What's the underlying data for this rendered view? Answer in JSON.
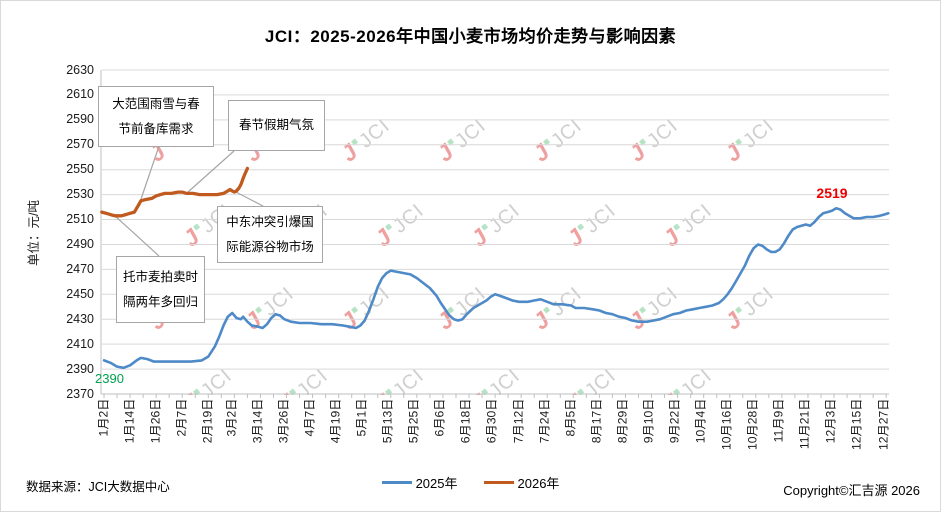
{
  "watermark_text": "JCI",
  "footer": {
    "source": "数据来源：JCI大数据中心",
    "copyright": "Copyright©汇吉源 2026"
  },
  "annotations": [
    {
      "text": "大范围雨雪与春\n节前备库需求"
    },
    {
      "text": "春节假期气氛"
    },
    {
      "text": "中东冲突引爆国\n际能源谷物市场"
    },
    {
      "text": "托市麦拍卖时\n隔两年多回归"
    }
  ],
  "chart_data": {
    "type": "line",
    "title": "JCI：2025-2026年中国小麦市场均价走势与影响因素",
    "xlabel": "",
    "ylabel": "单位：元/吨",
    "ylim": [
      2370,
      2630
    ],
    "ytick_step": 20,
    "y_tick_labels": [
      2370,
      2390,
      2410,
      2430,
      2450,
      2470,
      2490,
      2510,
      2530,
      2550,
      2570,
      2590,
      2610,
      2630
    ],
    "grid": "horizontal",
    "legend_position": "bottom-center",
    "x_tick_labels": [
      "1月2日",
      "1月14日",
      "1月26日",
      "2月7日",
      "2月19日",
      "3月2日",
      "3月14日",
      "3月26日",
      "4月7日",
      "4月19日",
      "5月1日",
      "5月13日",
      "5月25日",
      "6月6日",
      "6月18日",
      "6月30日",
      "7月12日",
      "7月24日",
      "8月5日",
      "8月17日",
      "8月29日",
      "9月10日",
      "9月22日",
      "10月4日",
      "10月16日",
      "10月28日",
      "11月9日",
      "11月21日",
      "12月3日",
      "12月15日",
      "12月27日"
    ],
    "x_tick_days": [
      2,
      14,
      26,
      38,
      50,
      61,
      73,
      85,
      97,
      109,
      121,
      133,
      145,
      157,
      169,
      181,
      193,
      205,
      217,
      229,
      241,
      253,
      265,
      277,
      289,
      301,
      313,
      325,
      337,
      349,
      361
    ],
    "point_labels": [
      {
        "text": "2519",
        "color": "#ee0000",
        "series": "2025年",
        "note": "december peak"
      },
      {
        "text": "2390",
        "color": "#00a050",
        "series": "2025年",
        "note": "january low"
      }
    ],
    "series": [
      {
        "name": "2025年",
        "color": "#4e8ac8",
        "points": [
          [
            2,
            2397
          ],
          [
            5,
            2395
          ],
          [
            8,
            2392
          ],
          [
            11,
            2391
          ],
          [
            14,
            2393
          ],
          [
            17,
            2397
          ],
          [
            19,
            2399
          ],
          [
            22,
            2398
          ],
          [
            25,
            2396
          ],
          [
            30,
            2396
          ],
          [
            36,
            2396
          ],
          [
            42,
            2396
          ],
          [
            47,
            2397
          ],
          [
            50,
            2400
          ],
          [
            53,
            2408
          ],
          [
            55,
            2416
          ],
          [
            57,
            2425
          ],
          [
            59,
            2432
          ],
          [
            61,
            2435
          ],
          [
            63,
            2431
          ],
          [
            65,
            2430
          ],
          [
            66,
            2432
          ],
          [
            68,
            2428
          ],
          [
            70,
            2425
          ],
          [
            73,
            2424
          ],
          [
            75,
            2423
          ],
          [
            77,
            2426
          ],
          [
            79,
            2431
          ],
          [
            81,
            2434
          ],
          [
            83,
            2433
          ],
          [
            85,
            2430
          ],
          [
            88,
            2428
          ],
          [
            92,
            2427
          ],
          [
            97,
            2427
          ],
          [
            102,
            2426
          ],
          [
            107,
            2426
          ],
          [
            112,
            2425
          ],
          [
            115,
            2424
          ],
          [
            118,
            2423
          ],
          [
            120,
            2425
          ],
          [
            122,
            2429
          ],
          [
            124,
            2437
          ],
          [
            126,
            2446
          ],
          [
            128,
            2456
          ],
          [
            130,
            2463
          ],
          [
            132,
            2467
          ],
          [
            134,
            2469
          ],
          [
            137,
            2468
          ],
          [
            140,
            2467
          ],
          [
            143,
            2466
          ],
          [
            146,
            2463
          ],
          [
            149,
            2459
          ],
          [
            152,
            2455
          ],
          [
            155,
            2449
          ],
          [
            157,
            2443
          ],
          [
            159,
            2438
          ],
          [
            161,
            2433
          ],
          [
            163,
            2430
          ],
          [
            165,
            2429
          ],
          [
            167,
            2430
          ],
          [
            169,
            2434
          ],
          [
            172,
            2439
          ],
          [
            175,
            2442
          ],
          [
            178,
            2445
          ],
          [
            180,
            2448
          ],
          [
            182,
            2450
          ],
          [
            184,
            2449
          ],
          [
            187,
            2447
          ],
          [
            190,
            2445
          ],
          [
            193,
            2444
          ],
          [
            197,
            2444
          ],
          [
            200,
            2445
          ],
          [
            203,
            2446
          ],
          [
            206,
            2444
          ],
          [
            209,
            2442
          ],
          [
            213,
            2442
          ],
          [
            217,
            2441
          ],
          [
            219,
            2439
          ],
          [
            223,
            2439
          ],
          [
            227,
            2438
          ],
          [
            230,
            2437
          ],
          [
            233,
            2435
          ],
          [
            236,
            2434
          ],
          [
            239,
            2432
          ],
          [
            242,
            2431
          ],
          [
            245,
            2429
          ],
          [
            248,
            2428
          ],
          [
            252,
            2428
          ],
          [
            255,
            2429
          ],
          [
            258,
            2430
          ],
          [
            261,
            2432
          ],
          [
            264,
            2434
          ],
          [
            267,
            2435
          ],
          [
            270,
            2437
          ],
          [
            273,
            2438
          ],
          [
            276,
            2439
          ],
          [
            279,
            2440
          ],
          [
            282,
            2441
          ],
          [
            285,
            2443
          ],
          [
            287,
            2446
          ],
          [
            289,
            2450
          ],
          [
            291,
            2455
          ],
          [
            293,
            2461
          ],
          [
            295,
            2467
          ],
          [
            297,
            2473
          ],
          [
            299,
            2481
          ],
          [
            301,
            2487
          ],
          [
            303,
            2490
          ],
          [
            305,
            2489
          ],
          [
            307,
            2486
          ],
          [
            309,
            2484
          ],
          [
            311,
            2484
          ],
          [
            313,
            2486
          ],
          [
            315,
            2491
          ],
          [
            317,
            2497
          ],
          [
            319,
            2502
          ],
          [
            321,
            2504
          ],
          [
            323,
            2505
          ],
          [
            325,
            2506
          ],
          [
            327,
            2505
          ],
          [
            329,
            2508
          ],
          [
            331,
            2512
          ],
          [
            333,
            2515
          ],
          [
            335,
            2516
          ],
          [
            337,
            2517
          ],
          [
            339,
            2519
          ],
          [
            341,
            2518
          ],
          [
            343,
            2515
          ],
          [
            345,
            2513
          ],
          [
            347,
            2511
          ],
          [
            350,
            2511
          ],
          [
            353,
            2512
          ],
          [
            356,
            2512
          ],
          [
            359,
            2513
          ],
          [
            361,
            2514
          ],
          [
            363,
            2515
          ]
        ]
      },
      {
        "name": "2026年",
        "color": "#c05a1e",
        "points": [
          [
            1,
            2516
          ],
          [
            3,
            2515
          ],
          [
            5,
            2514
          ],
          [
            7,
            2513
          ],
          [
            10,
            2513
          ],
          [
            12,
            2514
          ],
          [
            14,
            2515
          ],
          [
            16,
            2516
          ],
          [
            17,
            2519
          ],
          [
            18,
            2522
          ],
          [
            19,
            2525
          ],
          [
            21,
            2526
          ],
          [
            24,
            2527
          ],
          [
            26,
            2529
          ],
          [
            28,
            2530
          ],
          [
            30,
            2531
          ],
          [
            33,
            2531
          ],
          [
            36,
            2532
          ],
          [
            38,
            2532
          ],
          [
            40,
            2531
          ],
          [
            43,
            2531
          ],
          [
            46,
            2530
          ],
          [
            50,
            2530
          ],
          [
            54,
            2530
          ],
          [
            57,
            2531
          ],
          [
            59,
            2533
          ],
          [
            60,
            2534
          ],
          [
            61,
            2533
          ],
          [
            62,
            2532
          ],
          [
            63,
            2533
          ],
          [
            64,
            2535
          ],
          [
            65,
            2538
          ],
          [
            66,
            2543
          ],
          [
            67,
            2547
          ],
          [
            68,
            2551
          ]
        ]
      }
    ]
  }
}
